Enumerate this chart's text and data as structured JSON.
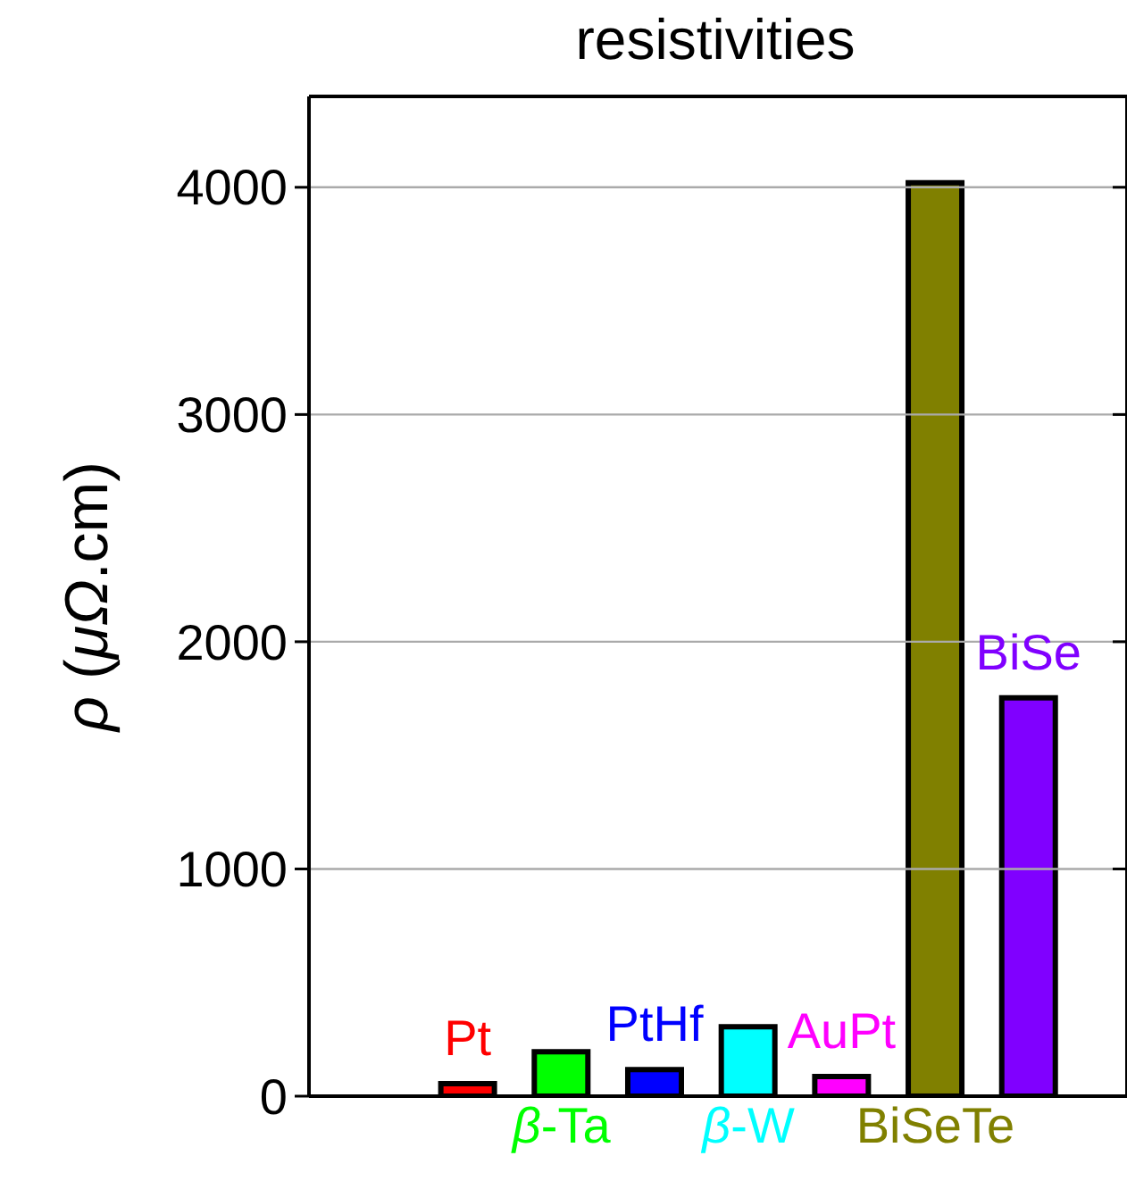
{
  "chart_data": {
    "type": "bar",
    "title": "resistivities",
    "ylabel": "ρ (μΩ.cm)",
    "categories": [
      "Pt",
      "β-Ta",
      "PtHf",
      "β-W",
      "AuPt",
      "BiSeTe",
      "BiSe"
    ],
    "values": [
      55,
      195,
      117,
      305,
      86,
      4020,
      1753
    ],
    "colors": [
      "#ff0000",
      "#00ff00",
      "#0000ff",
      "#00ffff",
      "#ff00ff",
      "#808000",
      "#8000ff"
    ],
    "ylim": [
      0,
      4400
    ],
    "yticks": [
      0,
      1000,
      2000,
      3000,
      4000
    ],
    "grid": "y"
  }
}
